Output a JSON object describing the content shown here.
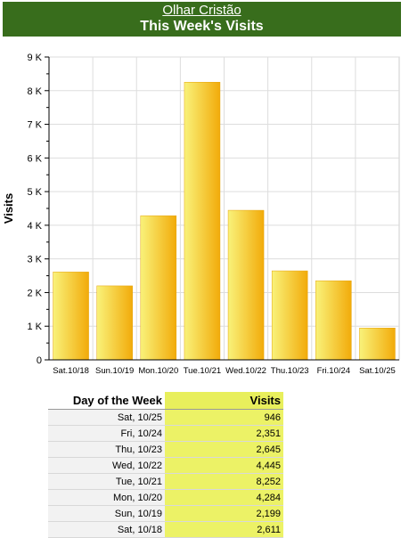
{
  "header": {
    "site": "Olhar Cristão",
    "title": "This Week's Visits"
  },
  "chart_data": {
    "type": "bar",
    "title": "This Week's Visits",
    "xlabel": "",
    "ylabel": "Visits",
    "categories": [
      "Sat.10/18",
      "Sun.10/19",
      "Mon.10/20",
      "Tue.10/21",
      "Wed.10/22",
      "Thu.10/23",
      "Fri.10/24",
      "Sat.10/25"
    ],
    "values": [
      2611,
      2199,
      4284,
      8252,
      4445,
      2645,
      2351,
      946
    ],
    "ylim": [
      0,
      9000
    ],
    "yticks": [
      {
        "value": 0,
        "label": "0"
      },
      {
        "value": 1000,
        "label": "1 K"
      },
      {
        "value": 2000,
        "label": "2 K"
      },
      {
        "value": 3000,
        "label": "3 K"
      },
      {
        "value": 4000,
        "label": "4 K"
      },
      {
        "value": 5000,
        "label": "5 K"
      },
      {
        "value": 6000,
        "label": "6 K"
      },
      {
        "value": 7000,
        "label": "7 K"
      },
      {
        "value": 8000,
        "label": "8 K"
      },
      {
        "value": 9000,
        "label": "9 K"
      }
    ],
    "grid": true,
    "colors": {
      "bar_light": "#f9f27a",
      "bar_dark": "#f2ab0a",
      "grid": "#dddddd"
    }
  },
  "table": {
    "headers": [
      "Day of the Week",
      "Visits"
    ],
    "rows": [
      [
        "Sat, 10/25",
        "946"
      ],
      [
        "Fri, 10/24",
        "2,351"
      ],
      [
        "Thu, 10/23",
        "2,645"
      ],
      [
        "Wed, 10/22",
        "4,445"
      ],
      [
        "Tue, 10/21",
        "8,252"
      ],
      [
        "Mon, 10/20",
        "4,284"
      ],
      [
        "Sun, 10/19",
        "2,199"
      ],
      [
        "Sat, 10/18",
        "2,611"
      ]
    ]
  }
}
